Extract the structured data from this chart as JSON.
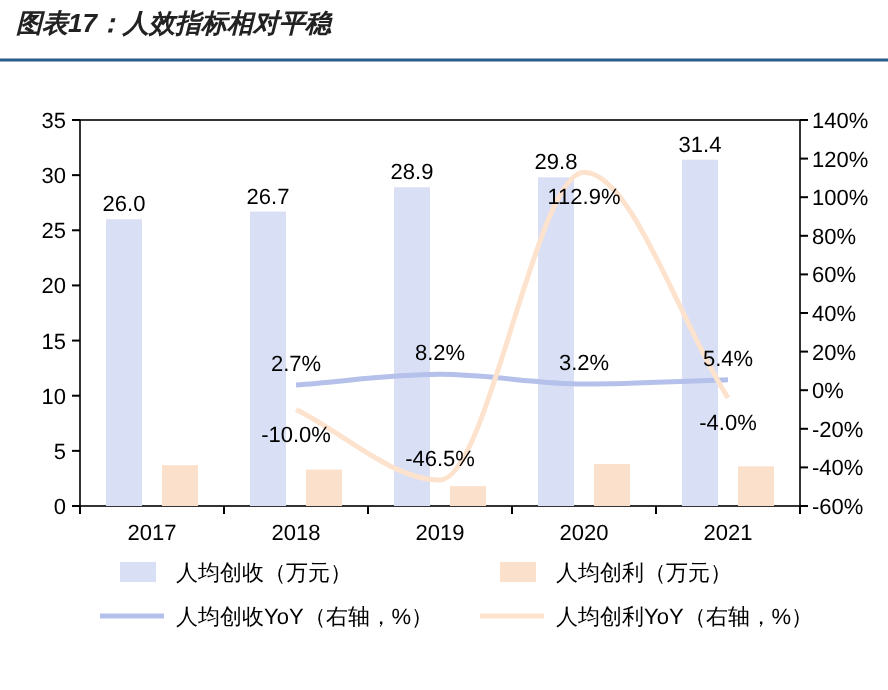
{
  "chart_data": {
    "type": "bar",
    "title": "图表17：人效指标相对平稳",
    "categories": [
      "2017",
      "2018",
      "2019",
      "2020",
      "2021"
    ],
    "series": [
      {
        "name": "人均创收（万元）",
        "color": "#d9dff5",
        "values": [
          26.0,
          26.7,
          28.9,
          29.8,
          31.4
        ],
        "value_labels": [
          "26.0",
          "26.7",
          "28.9",
          "29.8",
          "31.4"
        ]
      },
      {
        "name": "人均创利（万元）",
        "color": "#fbe0cc",
        "values": [
          3.7,
          3.3,
          1.8,
          3.8,
          3.6
        ]
      },
      {
        "name": "人均创收YoY（右轴，%）",
        "type": "line",
        "axis": "y2",
        "color": "#b5c1ea",
        "values": [
          null,
          2.7,
          8.2,
          3.2,
          5.4
        ],
        "value_labels": [
          null,
          "2.7%",
          "8.2%",
          "3.2%",
          "5.4%"
        ]
      },
      {
        "name": "人均创利YoY（右轴，%）",
        "type": "line",
        "axis": "y2",
        "color": "#fde3cd",
        "values": [
          null,
          -10.0,
          -46.5,
          112.9,
          -4.0
        ],
        "value_labels": [
          null,
          "-10.0%",
          "-46.5%",
          "112.9%",
          "-4.0%"
        ]
      }
    ],
    "ylim": [
      0,
      35
    ],
    "yticks": [
      0,
      5,
      10,
      15,
      20,
      25,
      30,
      35
    ],
    "y2lim": [
      -60,
      140
    ],
    "y2ticks": [
      {
        "value": -60,
        "label": "-60%"
      },
      {
        "value": -40,
        "label": "-40%"
      },
      {
        "value": -20,
        "label": "-20%"
      },
      {
        "value": 0,
        "label": "0%"
      },
      {
        "value": 20,
        "label": "20%"
      },
      {
        "value": 40,
        "label": "40%"
      },
      {
        "value": 60,
        "label": "60%"
      },
      {
        "value": 80,
        "label": "80%"
      },
      {
        "value": 100,
        "label": "100%"
      },
      {
        "value": 120,
        "label": "120%"
      },
      {
        "value": 140,
        "label": "140%"
      }
    ],
    "grid": false,
    "legend": "bottom"
  }
}
